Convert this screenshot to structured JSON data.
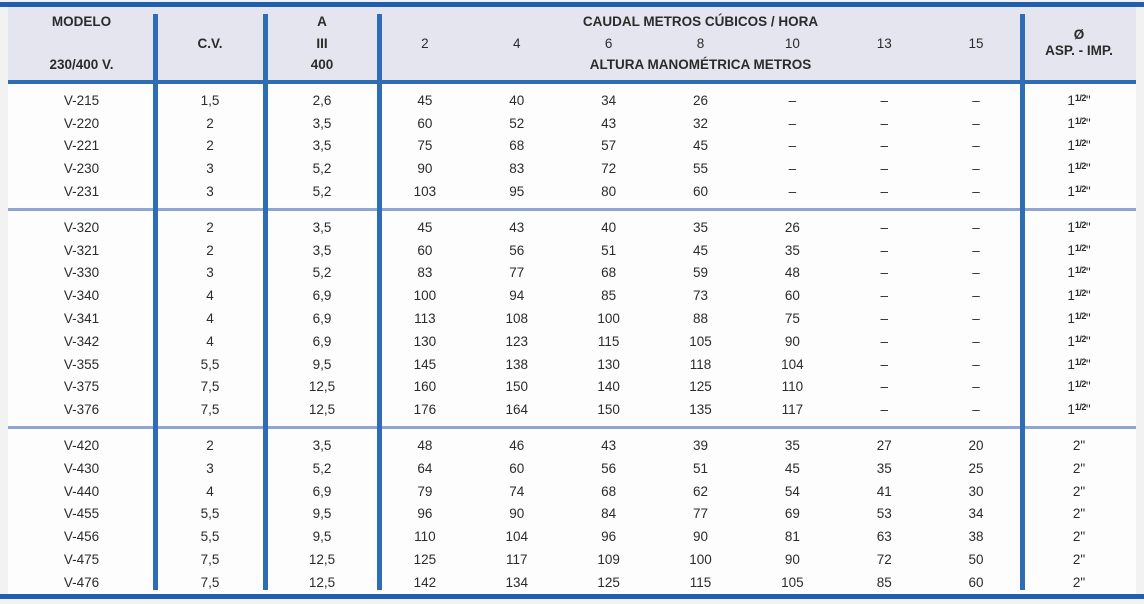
{
  "colors": {
    "rule_dark_blue": "#1f5fad",
    "line_blue": "#2e6db4",
    "group_separator_blue": "#8fa5d2",
    "header_bg": "#e5e5ef",
    "text": "#2b2b2b"
  },
  "table": {
    "header": {
      "modelo_title": "MODELO",
      "modelo_voltage": "230/400 V.",
      "cv_label": "C.V.",
      "amp_line1": "A",
      "amp_line2": "III",
      "amp_line3": "400",
      "flow_title": "CAUDAL METROS CÚBICOS / HORA",
      "flow_columns": [
        "2",
        "4",
        "6",
        "8",
        "10",
        "13",
        "15"
      ],
      "flow_subtitle": "ALTURA MANOMÉTRICA METROS",
      "diameter_symbol": "Ø",
      "diameter_label": "ASP. - IMP."
    },
    "groups": [
      {
        "diameter": {
          "base": "1",
          "sup": "1/2",
          "unit": "\""
        },
        "rows": [
          {
            "modelo": "V-215",
            "cv": "1,5",
            "amp": "2,6",
            "flows": [
              "45",
              "40",
              "34",
              "26",
              "–",
              "–",
              "–"
            ]
          },
          {
            "modelo": "V-220",
            "cv": "2",
            "amp": "3,5",
            "flows": [
              "60",
              "52",
              "43",
              "32",
              "–",
              "–",
              "–"
            ]
          },
          {
            "modelo": "V-221",
            "cv": "2",
            "amp": "3,5",
            "flows": [
              "75",
              "68",
              "57",
              "45",
              "–",
              "–",
              "–"
            ]
          },
          {
            "modelo": "V-230",
            "cv": "3",
            "amp": "5,2",
            "flows": [
              "90",
              "83",
              "72",
              "55",
              "–",
              "–",
              "–"
            ]
          },
          {
            "modelo": "V-231",
            "cv": "3",
            "amp": "5,2",
            "flows": [
              "103",
              "95",
              "80",
              "60",
              "–",
              "–",
              "–"
            ]
          }
        ]
      },
      {
        "diameter": {
          "base": "1",
          "sup": "1/2",
          "unit": "\""
        },
        "rows": [
          {
            "modelo": "V-320",
            "cv": "2",
            "amp": "3,5",
            "flows": [
              "45",
              "43",
              "40",
              "35",
              "26",
              "–",
              "–"
            ]
          },
          {
            "modelo": "V-321",
            "cv": "2",
            "amp": "3,5",
            "flows": [
              "60",
              "56",
              "51",
              "45",
              "35",
              "–",
              "–"
            ]
          },
          {
            "modelo": "V-330",
            "cv": "3",
            "amp": "5,2",
            "flows": [
              "83",
              "77",
              "68",
              "59",
              "48",
              "–",
              "–"
            ]
          },
          {
            "modelo": "V-340",
            "cv": "4",
            "amp": "6,9",
            "flows": [
              "100",
              "94",
              "85",
              "73",
              "60",
              "–",
              "–"
            ]
          },
          {
            "modelo": "V-341",
            "cv": "4",
            "amp": "6,9",
            "flows": [
              "113",
              "108",
              "100",
              "88",
              "75",
              "–",
              "–"
            ]
          },
          {
            "modelo": "V-342",
            "cv": "4",
            "amp": "6,9",
            "flows": [
              "130",
              "123",
              "115",
              "105",
              "90",
              "–",
              "–"
            ]
          },
          {
            "modelo": "V-355",
            "cv": "5,5",
            "amp": "9,5",
            "flows": [
              "145",
              "138",
              "130",
              "118",
              "104",
              "–",
              "–"
            ]
          },
          {
            "modelo": "V-375",
            "cv": "7,5",
            "amp": "12,5",
            "flows": [
              "160",
              "150",
              "140",
              "125",
              "110",
              "–",
              "–"
            ]
          },
          {
            "modelo": "V-376",
            "cv": "7,5",
            "amp": "12,5",
            "flows": [
              "176",
              "164",
              "150",
              "135",
              "117",
              "–",
              "–"
            ]
          }
        ]
      },
      {
        "diameter": {
          "base": "2",
          "sup": "",
          "unit": "\""
        },
        "rows": [
          {
            "modelo": "V-420",
            "cv": "2",
            "amp": "3,5",
            "flows": [
              "48",
              "46",
              "43",
              "39",
              "35",
              "27",
              "20"
            ]
          },
          {
            "modelo": "V-430",
            "cv": "3",
            "amp": "5,2",
            "flows": [
              "64",
              "60",
              "56",
              "51",
              "45",
              "35",
              "25"
            ]
          },
          {
            "modelo": "V-440",
            "cv": "4",
            "amp": "6,9",
            "flows": [
              "79",
              "74",
              "68",
              "62",
              "54",
              "41",
              "30"
            ]
          },
          {
            "modelo": "V-455",
            "cv": "5,5",
            "amp": "9,5",
            "flows": [
              "96",
              "90",
              "84",
              "77",
              "69",
              "53",
              "34"
            ]
          },
          {
            "modelo": "V-456",
            "cv": "5,5",
            "amp": "9,5",
            "flows": [
              "110",
              "104",
              "96",
              "90",
              "81",
              "63",
              "38"
            ]
          },
          {
            "modelo": "V-475",
            "cv": "7,5",
            "amp": "12,5",
            "flows": [
              "125",
              "117",
              "109",
              "100",
              "90",
              "72",
              "50"
            ]
          },
          {
            "modelo": "V-476",
            "cv": "7,5",
            "amp": "12,5",
            "flows": [
              "142",
              "134",
              "125",
              "115",
              "105",
              "85",
              "60"
            ]
          }
        ]
      }
    ]
  }
}
